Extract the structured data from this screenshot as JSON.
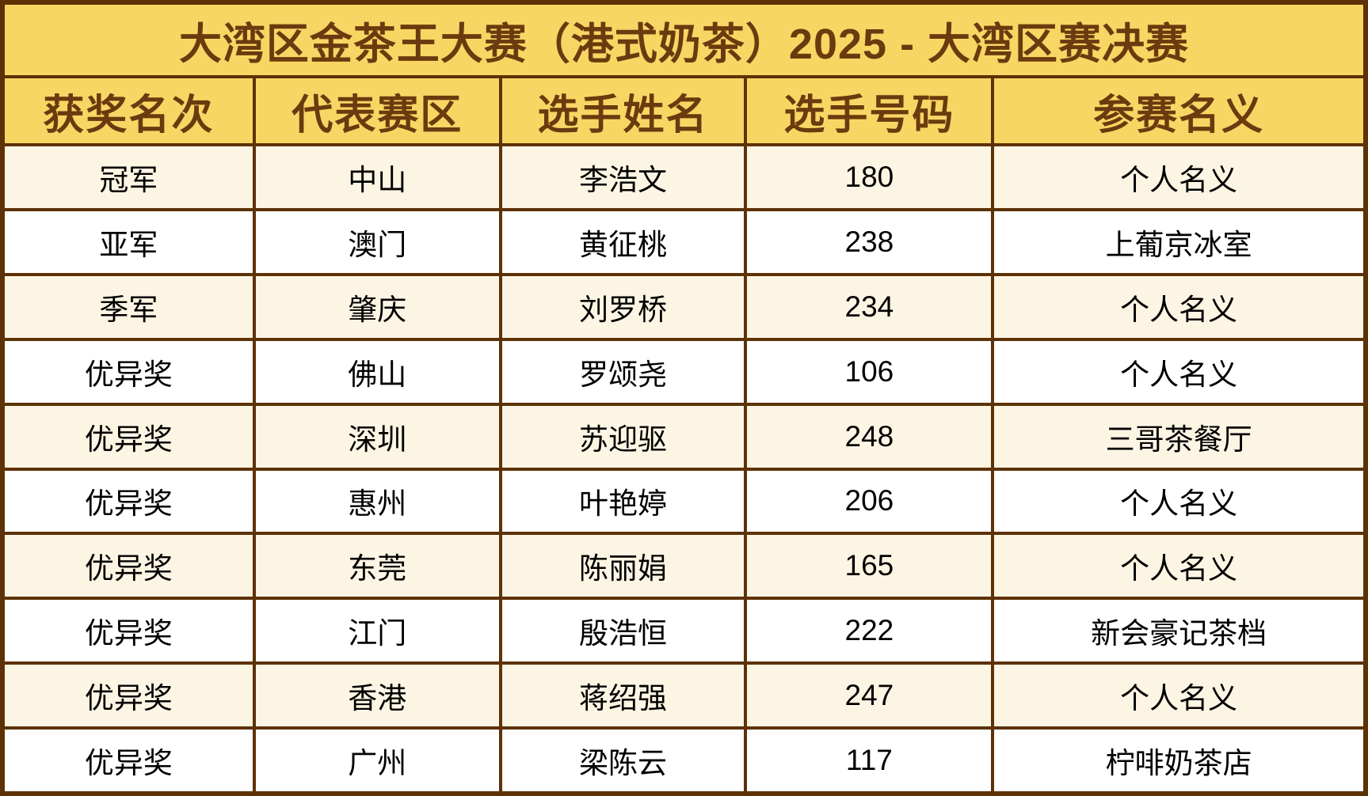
{
  "title": "大湾区金茶王大赛（港式奶茶）2025 - 大湾区赛决赛",
  "colors": {
    "header_background": "#f8d664",
    "header_text": "#6b3a0e",
    "border": "#5d3206",
    "row_stripe_cream": "#fdf5e4",
    "row_stripe_white": "#ffffff",
    "body_text": "#000000"
  },
  "chart_data": {
    "type": "table",
    "title": "大湾区金茶王大赛（港式奶茶）2025 - 大湾区赛决赛",
    "columns": [
      "获奖名次",
      "代表赛区",
      "选手姓名",
      "选手号码",
      "参赛名义"
    ],
    "rows": [
      [
        "冠军",
        "中山",
        "李浩文",
        "180",
        "个人名义"
      ],
      [
        "亚军",
        "澳门",
        "黄征桃",
        "238",
        "上葡京冰室"
      ],
      [
        "季军",
        "肇庆",
        "刘罗桥",
        "234",
        "个人名义"
      ],
      [
        "优异奖",
        "佛山",
        "罗颂尧",
        "106",
        "个人名义"
      ],
      [
        "优异奖",
        "深圳",
        "苏迎驱",
        "248",
        "三哥茶餐厅"
      ],
      [
        "优异奖",
        "惠州",
        "叶艳婷",
        "206",
        "个人名义"
      ],
      [
        "优异奖",
        "东莞",
        "陈丽娟",
        "165",
        "个人名义"
      ],
      [
        "优异奖",
        "江门",
        "殷浩恒",
        "222",
        "新会豪记茶档"
      ],
      [
        "优异奖",
        "香港",
        "蒋绍强",
        "247",
        "个人名义"
      ],
      [
        "优异奖",
        "广州",
        "梁陈云",
        "117",
        "柠啡奶茶店"
      ]
    ],
    "layout": {
      "striped_rows": true,
      "stripe_order": "cream-first",
      "column_width_ratios": [
        315,
        313,
        312,
        314,
        473
      ]
    }
  }
}
